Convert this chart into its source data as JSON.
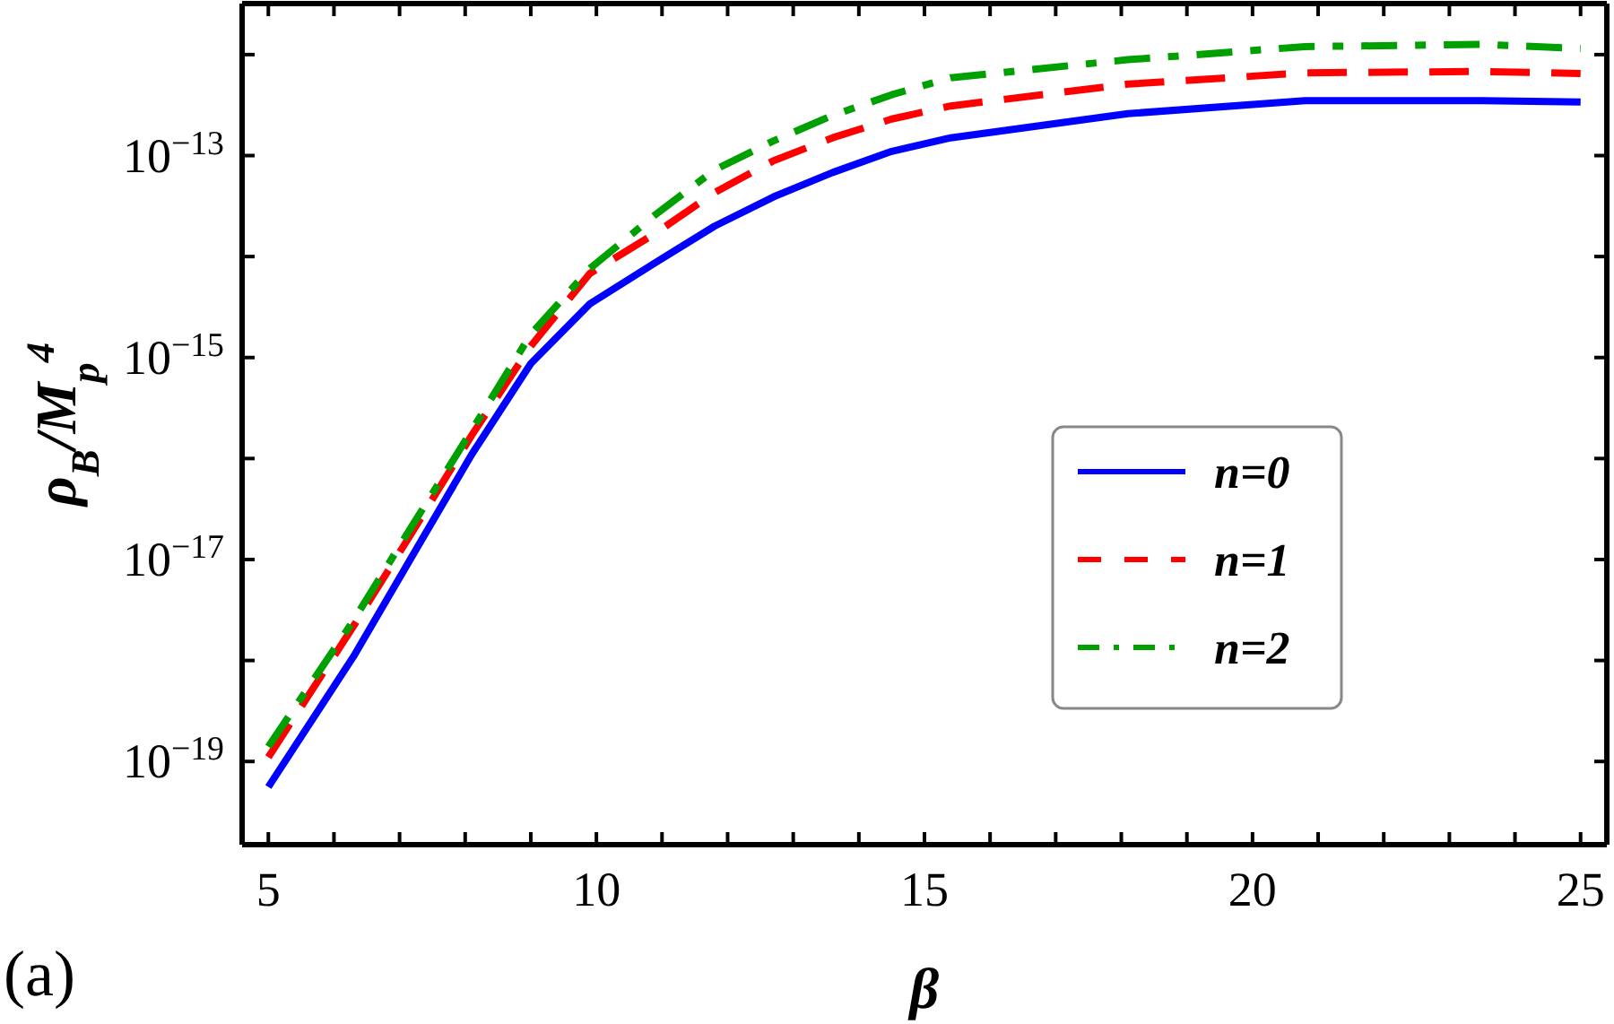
{
  "chart_data": {
    "type": "line",
    "xlabel": "β",
    "ylabel": "ρ$_{B}$/M$_{p}$$^{4}$",
    "annotations": [
      "(a)"
    ],
    "x": [
      5,
      6.3,
      7.2,
      8.1,
      9,
      9.9,
      10.9,
      11.8,
      12.7,
      13.6,
      14.5,
      15.4,
      18.1,
      20.8,
      23.5,
      25
    ],
    "series": [
      {
        "name": "n=0",
        "color": "#0000ff",
        "line_style": "solid",
        "values": [
          5.6e-20,
          1.1e-18,
          1.1e-17,
          1.1e-16,
          8.7e-16,
          3.4e-15,
          8.7e-15,
          2e-14,
          3.9e-14,
          6.8e-14,
          1.1e-13,
          1.5e-13,
          2.6e-13,
          3.5e-13,
          3.5e-13,
          3.4e-13
        ]
      },
      {
        "name": "n=1",
        "color": "#ff0000",
        "line_style": "dashed",
        "values": [
          1.1e-19,
          2.2e-18,
          1.9e-17,
          1.7e-16,
          1.3e-15,
          6.8e-15,
          1.7e-14,
          4.3e-14,
          8.9e-14,
          1.5e-13,
          2.3e-13,
          3.1e-13,
          5.1e-13,
          6.6e-13,
          6.8e-13,
          6.5e-13
        ]
      },
      {
        "name": "n=2",
        "color": "#00a000",
        "line_style": "dashdot",
        "values": [
          1.4e-19,
          2.5e-18,
          2.2e-17,
          1.9e-16,
          1.7e-15,
          7.6e-15,
          2.6e-14,
          7.2e-14,
          1.4e-13,
          2.5e-13,
          4e-13,
          5.9e-13,
          8.9e-13,
          1.2e-12,
          1.26e-12,
          1.15e-12
        ]
      }
    ],
    "log": "y",
    "xlim": [
      4.6,
      25.4
    ],
    "xticks": [
      5,
      {
        "value": 6,
        "label": null
      },
      {
        "value": 7,
        "label": null
      },
      {
        "value": 8,
        "label": null
      },
      {
        "value": 9,
        "label": null
      },
      10,
      {
        "value": 11,
        "label": null
      },
      {
        "value": 12,
        "label": null
      },
      {
        "value": 13,
        "label": null
      },
      {
        "value": 14,
        "label": null
      },
      15,
      {
        "value": 16,
        "label": null
      },
      {
        "value": 17,
        "label": null
      },
      {
        "value": 18,
        "label": null
      },
      {
        "value": 19,
        "label": null
      },
      20,
      {
        "value": 21,
        "label": null
      },
      {
        "value": 22,
        "label": null
      },
      {
        "value": 23,
        "label": null
      },
      {
        "value": 24,
        "label": null
      },
      25
    ],
    "ylim": [
      1.5e-20,
      3.2e-12
    ],
    "yticks": [
      {
        "value": 1e-19,
        "label": "10$^{−19}$"
      },
      {
        "value": 1e-18,
        "label": null
      },
      {
        "value": 1e-17,
        "label": "10$^{−17}$"
      },
      {
        "value": 1e-16,
        "label": null
      },
      {
        "value": 1e-15,
        "label": "10$^{−15}$"
      },
      {
        "value": 1e-14,
        "label": null
      },
      {
        "value": 1e-13,
        "label": "10$^{−13}$"
      },
      {
        "value": 1e-12,
        "label": null
      }
    ],
    "legend": "right",
    "grid": false
  }
}
